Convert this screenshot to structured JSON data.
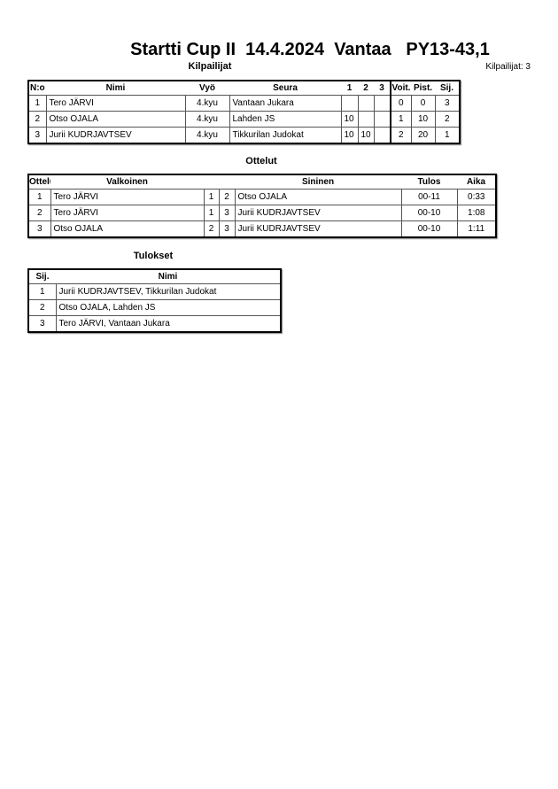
{
  "title": "Startti Cup II  14.4.2024  Vantaa   PY13-43,1",
  "competitors": {
    "heading": "Kilpailijat",
    "count_label": "Kilpailijat: 3",
    "columns": [
      "N:o",
      "Nimi",
      "Vyö",
      "Seura",
      "1",
      "2",
      "3",
      "Voit.",
      "Pist.",
      "Sij."
    ],
    "rows": [
      [
        "1",
        "Tero JÄRVI",
        "4.kyu",
        "Vantaan Jukara",
        "",
        "",
        "",
        "0",
        "0",
        "3"
      ],
      [
        "2",
        "Otso OJALA",
        "4.kyu",
        "Lahden JS",
        "10",
        "",
        "",
        "1",
        "10",
        "2"
      ],
      [
        "3",
        "Jurii KUDRJAVTSEV",
        "4.kyu",
        "Tikkurilan Judokat",
        "10",
        "10",
        "",
        "2",
        "20",
        "1"
      ]
    ]
  },
  "matches": {
    "heading": "Ottelut",
    "columns": [
      "Ottelu",
      "Valkoinen",
      "Sininen",
      "Tulos",
      "Aika"
    ],
    "rows": [
      [
        "1",
        "Tero JÄRVI",
        "1",
        "2",
        "Otso OJALA",
        "00-11",
        "0:33"
      ],
      [
        "2",
        "Tero JÄRVI",
        "1",
        "3",
        "Jurii KUDRJAVTSEV",
        "00-10",
        "1:08"
      ],
      [
        "3",
        "Otso OJALA",
        "2",
        "3",
        "Jurii KUDRJAVTSEV",
        "00-10",
        "1:11"
      ]
    ]
  },
  "results": {
    "heading": "Tulokset",
    "columns": [
      "Sij.",
      "Nimi"
    ],
    "rows": [
      [
        "1",
        "Jurii KUDRJAVTSEV, Tikkurilan Judokat"
      ],
      [
        "2",
        "Otso OJALA, Lahden JS"
      ],
      [
        "3",
        "Tero JÄRVI, Vantaan Jukara"
      ]
    ]
  }
}
